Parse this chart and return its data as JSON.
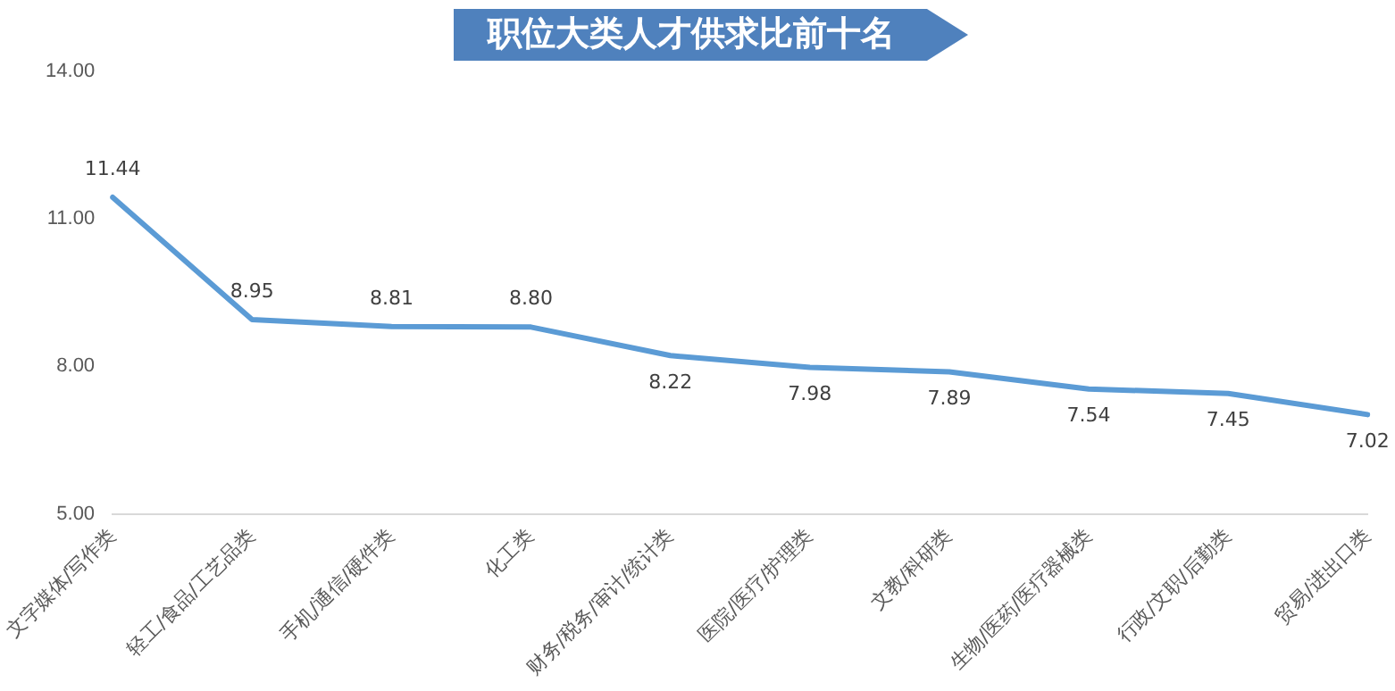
{
  "chart_data": {
    "type": "line",
    "title": "职位大类人才供求比前十名",
    "categories": [
      "文字媒体/写作类",
      "轻工/食品/工艺品类",
      "手机/通信/硬件类",
      "化工类",
      "财务/税务/审计/统计类",
      "医院/医疗/护理类",
      "文教/科研类",
      "生物/医药/医疗器械类",
      "行政/文职/后勤类",
      "贸易/进出口类"
    ],
    "series": [
      {
        "color": "#5b9bd5",
        "values": [
          11.44,
          8.95,
          8.81,
          8.8,
          8.22,
          7.98,
          7.89,
          7.54,
          7.45,
          7.02
        ],
        "value_labels": [
          "11.44",
          "8.95",
          "8.81",
          "8.80",
          "8.22",
          "7.98",
          "7.89",
          "7.54",
          "7.45",
          "7.02"
        ]
      }
    ],
    "ylim": [
      5,
      14
    ],
    "yticks": [
      {
        "value": 5,
        "label": "5.00"
      },
      {
        "value": 8,
        "label": "8.00"
      },
      {
        "value": 11,
        "label": "11.00"
      },
      {
        "value": 14,
        "label": "14.00"
      }
    ],
    "grid": false,
    "legend": false,
    "marker": "none",
    "line_style": "solid"
  }
}
